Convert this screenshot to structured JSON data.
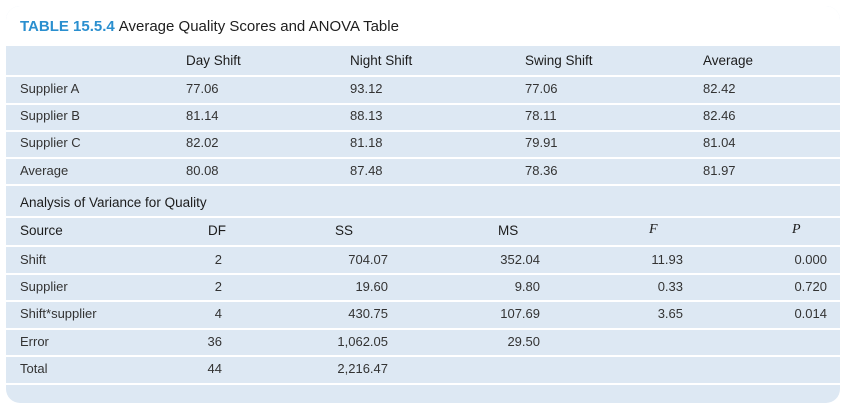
{
  "title": {
    "label": "TABLE 15.5.4",
    "text": "Average Quality Scores and ANOVA Table"
  },
  "quality_table": {
    "headers": [
      "Day Shift",
      "Night Shift",
      "Swing Shift",
      "Average"
    ],
    "rows": [
      {
        "label": "Supplier A",
        "values": [
          "77.06",
          "93.12",
          "77.06",
          "82.42"
        ]
      },
      {
        "label": "Supplier B",
        "values": [
          "81.14",
          "88.13",
          "78.11",
          "82.46"
        ]
      },
      {
        "label": "Supplier C",
        "values": [
          "82.02",
          "81.18",
          "79.91",
          "81.04"
        ]
      },
      {
        "label": "Average",
        "values": [
          "80.08",
          "87.48",
          "78.36",
          "81.97"
        ]
      }
    ]
  },
  "anova": {
    "heading": "Analysis of Variance for Quality",
    "headers": [
      "Source",
      "DF",
      "SS",
      "MS",
      "F",
      "P"
    ],
    "rows": [
      {
        "source": "Shift",
        "df": "2",
        "ss": "704.07",
        "ms": "352.04",
        "f": "11.93",
        "p": "0.000"
      },
      {
        "source": "Supplier",
        "df": "2",
        "ss": "19.60",
        "ms": "9.80",
        "f": "0.33",
        "p": "0.720"
      },
      {
        "source": "Shift*supplier",
        "df": "4",
        "ss": "430.75",
        "ms": "107.69",
        "f": "3.65",
        "p": "0.014"
      },
      {
        "source": "Error",
        "df": "36",
        "ss": "1,062.05",
        "ms": "29.50",
        "f": "",
        "p": ""
      },
      {
        "source": "Total",
        "df": "44",
        "ss": "2,216.47",
        "ms": "",
        "f": "",
        "p": ""
      }
    ]
  }
}
